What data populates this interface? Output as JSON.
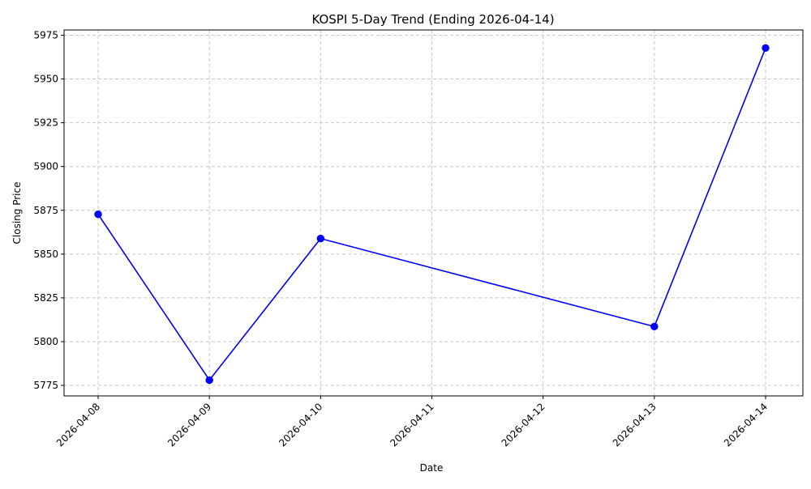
{
  "chart_data": {
    "type": "line",
    "title": "KOSPI 5-Day Trend (Ending 2026-04-14)",
    "xlabel": "Date",
    "ylabel": "Closing Price",
    "x_ticks": [
      "2026-04-08",
      "2026-04-09",
      "2026-04-10",
      "2026-04-11",
      "2026-04-12",
      "2026-04-13",
      "2026-04-14"
    ],
    "y_ticks": [
      5775,
      5800,
      5825,
      5850,
      5875,
      5900,
      5925,
      5950,
      5975
    ],
    "ylim": [
      5769,
      5978
    ],
    "series": [
      {
        "color": "#0000ff",
        "marker": "circle",
        "points": [
          {
            "x": "2026-04-08",
            "y": 5872.7
          },
          {
            "x": "2026-04-09",
            "y": 5778.0
          },
          {
            "x": "2026-04-10",
            "y": 5858.9
          },
          {
            "x": "2026-04-13",
            "y": 5808.6
          },
          {
            "x": "2026-04-14",
            "y": 5967.7
          }
        ]
      }
    ],
    "grid": true,
    "grid_style": "dashed",
    "x_tick_rotation_deg": 45
  }
}
